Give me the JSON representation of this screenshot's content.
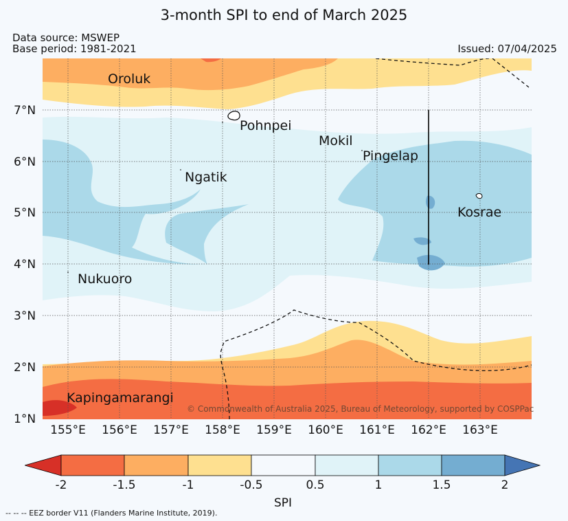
{
  "title": "3-month SPI to end of March 2025",
  "data_source": "Data source: MSWEP",
  "base_period": "Base period: 1981-2021",
  "issued": "Issued: 07/04/2025",
  "lat_labels": [
    "7°N",
    "6°N",
    "5°N",
    "4°N",
    "3°N",
    "2°N",
    "1°N"
  ],
  "lon_labels": [
    "155°E",
    "156°E",
    "157°E",
    "158°E",
    "159°E",
    "160°E",
    "161°E",
    "162°E",
    "163°E"
  ],
  "places": {
    "oroluk": "Oroluk",
    "pohnpei": "Pohnpei",
    "mokil": "Mokil",
    "pingelap": "Pingelap",
    "ngatik": "Ngatik",
    "kosrae": "Kosrae",
    "nukuoro": "Nukuoro",
    "kapingamarangi": "Kapingamarangi"
  },
  "copyright": "© Commonwealth of Australia 2025, Bureau of Meteorology, supported by COSPPac",
  "colorbar": {
    "label": "SPI",
    "ticks": [
      "-2",
      "-1.5",
      "-1",
      "-0.5",
      "0.5",
      "1",
      "1.5",
      "2"
    ],
    "colors": {
      "below_min": "#d73027",
      "c1": "#f46d43",
      "c2": "#fdae61",
      "c3": "#fee090",
      "c4": "#f5f9fd",
      "c5": "#e0f3f8",
      "c6": "#abd9e9",
      "c7": "#74add1",
      "above_max": "#4575b4"
    }
  },
  "footer": "-- -- -- EEZ border V11 (Flanders Marine Institute, 2019)."
}
